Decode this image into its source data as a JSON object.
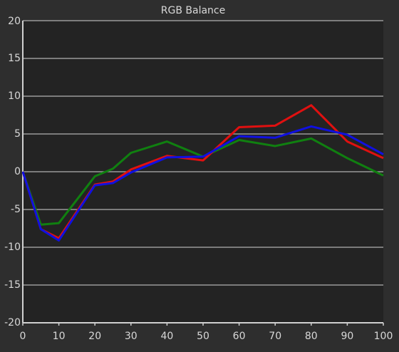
{
  "chart_data": {
    "type": "line",
    "title": "RGB Balance",
    "x": [
      0,
      5,
      10,
      20,
      25,
      30,
      40,
      50,
      60,
      70,
      80,
      90,
      100
    ],
    "series": [
      {
        "color": "#108010",
        "values": [
          0,
          -7.0,
          -6.8,
          -0.6,
          0.4,
          2.5,
          4.0,
          2.0,
          4.2,
          3.4,
          4.4,
          1.8,
          -0.5
        ]
      },
      {
        "color": "#e01010",
        "values": [
          0,
          -7.6,
          -8.8,
          -1.7,
          -1.3,
          0.3,
          2.1,
          1.5,
          5.9,
          6.1,
          8.8,
          4.0,
          1.8
        ]
      },
      {
        "color": "#1010e0",
        "values": [
          0,
          -7.6,
          -9.1,
          -1.8,
          -1.5,
          -0.1,
          1.9,
          2.0,
          4.7,
          4.5,
          6.0,
          4.9,
          2.3
        ]
      }
    ],
    "xlim": [
      0,
      100
    ],
    "xticks": [
      0,
      10,
      20,
      30,
      40,
      50,
      60,
      70,
      80,
      90,
      100
    ],
    "ylim": [
      -20,
      20
    ],
    "yticks": [
      -20,
      -15,
      -10,
      -5,
      0,
      5,
      10,
      15,
      20
    ],
    "grid": true
  }
}
